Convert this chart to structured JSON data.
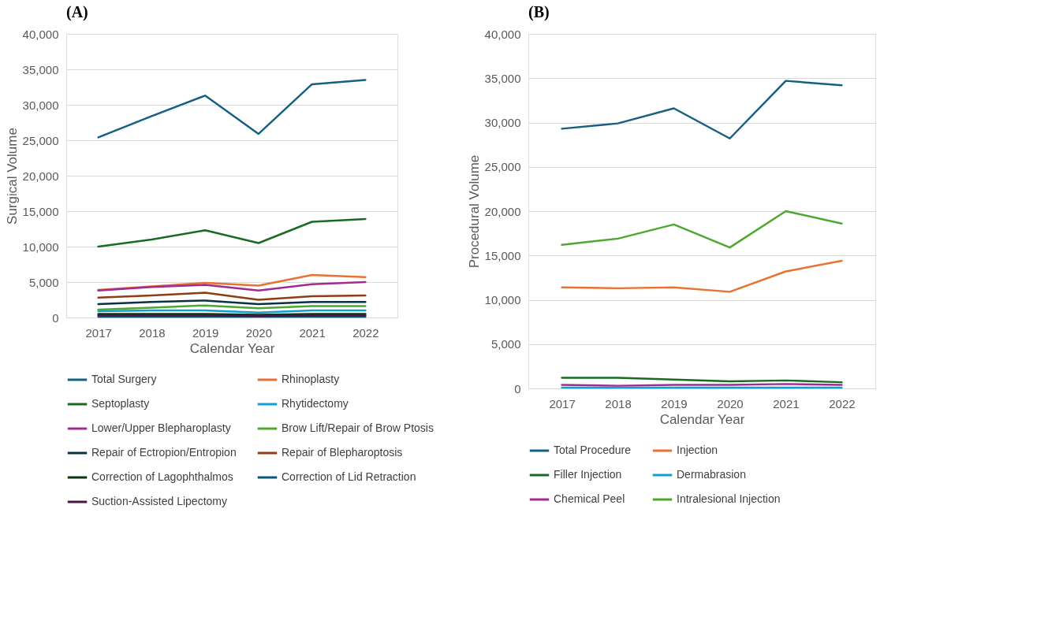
{
  "chart_data": [
    {
      "type": "line",
      "title": "(A)",
      "xlabel": "Calendar Year",
      "ylabel": "Surgical Volume",
      "categories": [
        "2017",
        "2018",
        "2019",
        "2020",
        "2021",
        "2022"
      ],
      "ylim": [
        0,
        40000
      ],
      "yticks": [
        0,
        {
          "value": 5000,
          "label": "5,000"
        },
        {
          "value": 10000,
          "label": "10,000"
        },
        {
          "value": 15000,
          "label": "15,000"
        },
        {
          "value": 20000,
          "label": "20,000"
        },
        {
          "value": 25000,
          "label": "25,000"
        },
        {
          "value": 30000,
          "label": "30,000"
        },
        {
          "value": 35000,
          "label": "35,000"
        },
        {
          "value": 40000,
          "label": "40,000"
        }
      ],
      "grid": "y",
      "legend": "bottom",
      "line_style": "solid",
      "marker": "none",
      "series": [
        {
          "name": "Total Surgery",
          "color": "#156082",
          "values": [
            25400,
            28400,
            31300,
            25900,
            32900,
            33500
          ]
        },
        {
          "name": "Rhinoplasty",
          "color": "#e97132",
          "values": [
            3900,
            4400,
            4900,
            4500,
            6000,
            5700
          ]
        },
        {
          "name": "Septoplasty",
          "color": "#196b24",
          "values": [
            10000,
            11000,
            12300,
            10500,
            13500,
            13900
          ]
        },
        {
          "name": "Rhytidectomy",
          "color": "#0f9ed5",
          "values": [
            900,
            1000,
            1000,
            700,
            1000,
            1000
          ]
        },
        {
          "name": "Lower/Upper Blepharoplasty",
          "color": "#a02b93",
          "values": [
            3800,
            4300,
            4600,
            3800,
            4700,
            5000
          ]
        },
        {
          "name": "Brow Lift/Repair of Brow Ptosis",
          "color": "#4ea72e",
          "values": [
            1100,
            1400,
            1700,
            1300,
            1600,
            1600
          ]
        },
        {
          "name": "Repair of Ectropion/Entropion",
          "color": "#0b3041",
          "values": [
            1900,
            2200,
            2400,
            1900,
            2200,
            2200
          ]
        },
        {
          "name": "Repair of Blepharoptosis",
          "color": "#8f3d12",
          "values": [
            2800,
            3100,
            3500,
            2500,
            3000,
            3100
          ]
        },
        {
          "name": "Correction of Lagophthalmos",
          "color": "#0d3512",
          "values": [
            500,
            500,
            500,
            400,
            500,
            500
          ]
        },
        {
          "name": "Correction of Lid Retraction",
          "color": "#0c5677",
          "values": [
            100,
            100,
            100,
            100,
            100,
            100
          ]
        },
        {
          "name": "Suction-Assisted Lipectomy",
          "color": "#4b1446",
          "values": [
            300,
            300,
            300,
            200,
            300,
            300
          ]
        }
      ]
    },
    {
      "type": "line",
      "title": "(B)",
      "xlabel": "Calendar Year",
      "ylabel": "Procedural Volume",
      "categories": [
        "2017",
        "2018",
        "2019",
        "2020",
        "2021",
        "2022"
      ],
      "ylim": [
        0,
        40000
      ],
      "yticks": [
        0,
        {
          "value": 5000,
          "label": "5,000"
        },
        {
          "value": 10000,
          "label": "10,000"
        },
        {
          "value": 15000,
          "label": "15,000"
        },
        {
          "value": 20000,
          "label": "20,000"
        },
        {
          "value": 25000,
          "label": "25,000"
        },
        {
          "value": 30000,
          "label": "30,000"
        },
        {
          "value": 35000,
          "label": "35,000"
        },
        {
          "value": 40000,
          "label": "40,000"
        }
      ],
      "grid": "y",
      "legend": "bottom",
      "line_style": "solid",
      "marker": "none",
      "series": [
        {
          "name": "Total Procedure",
          "color": "#156082",
          "values": [
            29300,
            29900,
            31600,
            28200,
            34700,
            34200
          ]
        },
        {
          "name": "Injection",
          "color": "#e97132",
          "values": [
            11400,
            11300,
            11400,
            10900,
            13200,
            14400
          ]
        },
        {
          "name": "Filler Injection",
          "color": "#196b24",
          "values": [
            1200,
            1200,
            1000,
            800,
            900,
            700
          ]
        },
        {
          "name": "Dermabrasion",
          "color": "#0f9ed5",
          "values": [
            100,
            100,
            100,
            100,
            100,
            100
          ]
        },
        {
          "name": "Chemical Peel",
          "color": "#a02b93",
          "values": [
            400,
            300,
            400,
            400,
            500,
            400
          ]
        },
        {
          "name": "Intralesional Injection",
          "color": "#4ea72e",
          "values": [
            16200,
            16900,
            18500,
            15900,
            20000,
            18600
          ]
        }
      ]
    }
  ]
}
